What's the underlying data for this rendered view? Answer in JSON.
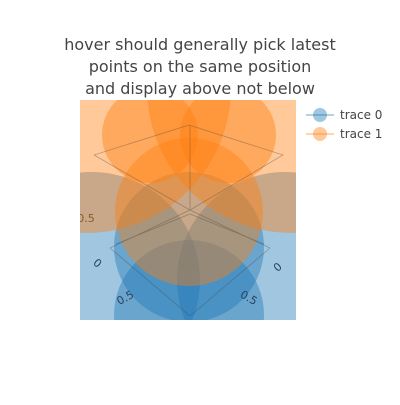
{
  "chart_data": {
    "type": "scatter",
    "title_lines": [
      "hover should generally pick latest",
      "points on the same position",
      "and display above not below"
    ],
    "subtitle": "",
    "xlabel": "",
    "ylabel": "",
    "legend_position": "top-right",
    "grid": true,
    "series": [
      {
        "name": "trace 0",
        "color": "#1f77b4",
        "marker_symbol": "circle"
      },
      {
        "name": "trace 1",
        "color": "#ff7f0e",
        "marker_symbol": "circle"
      }
    ],
    "visible_tick_labels": [
      "0.5",
      "0",
      "0.5",
      "0",
      "0.5"
    ]
  }
}
